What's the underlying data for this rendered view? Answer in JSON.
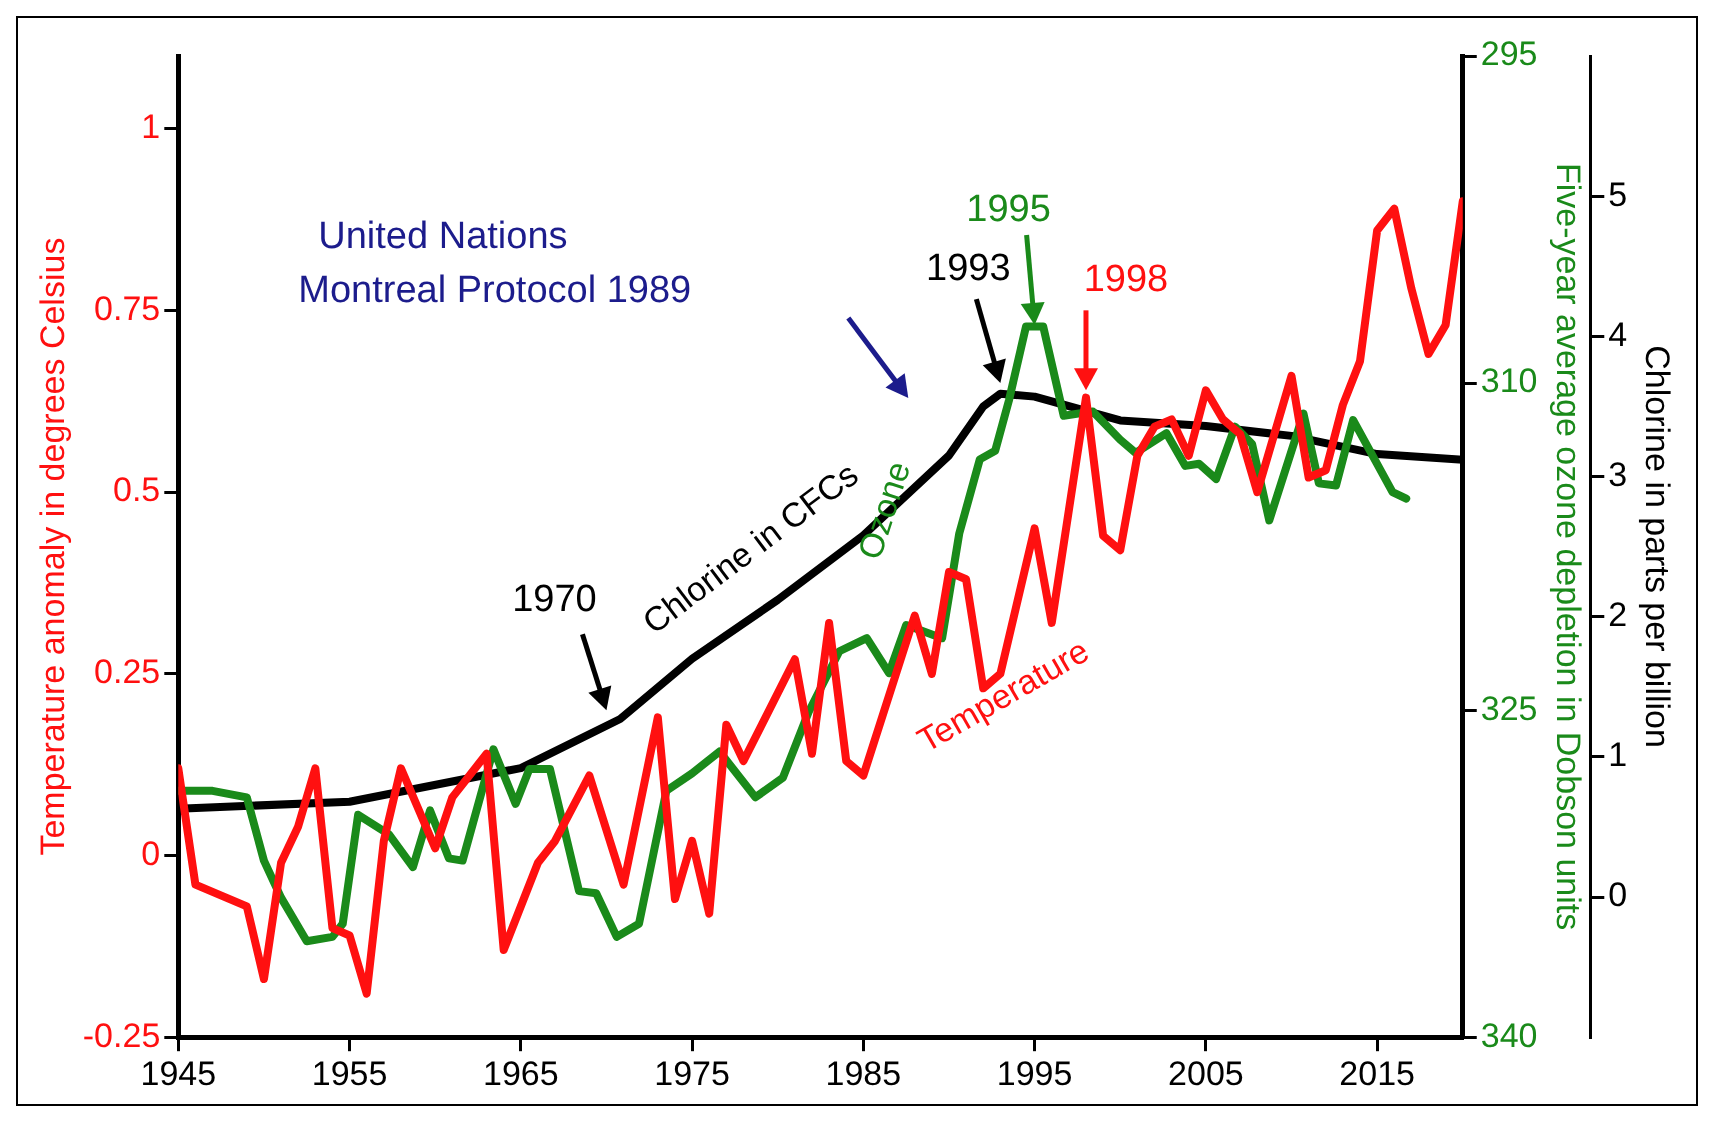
{
  "chart_data": {
    "type": "line",
    "ylabel": "Temperature anomaly in degrees Celsius",
    "y2label": "Five-year average ozone depletion in Dobson units",
    "y3label": "Chlorine in parts per billion",
    "xlim": [
      1945,
      2020
    ],
    "xticks": [
      1945,
      1955,
      1965,
      1975,
      1985,
      1995,
      2005,
      2015
    ],
    "ylim": [
      -0.25,
      1.1
    ],
    "yticks": [
      -0.25,
      0,
      0.25,
      0.5,
      0.75,
      1
    ],
    "y2lim": [
      340,
      295
    ],
    "y2ticks": [
      295,
      310,
      325,
      340
    ],
    "y3lim": [
      -1,
      6
    ],
    "y3ticks": [
      0,
      1,
      2,
      3,
      4,
      5
    ],
    "marker": "none",
    "legend": false,
    "grid": false,
    "series": [
      {
        "name": "Temperature",
        "color": "#ff1010",
        "axis": "y",
        "x": [
          1945,
          1946,
          1949,
          1950,
          1951,
          1952,
          1953,
          1954,
          1955,
          1956,
          1957,
          1958,
          1960,
          1961,
          1963,
          1964,
          1966,
          1967,
          1969,
          1971,
          1973,
          1974,
          1975,
          1976,
          1977,
          1978,
          1981,
          1982,
          1983,
          1984,
          1985,
          1988,
          1989,
          1990,
          1991,
          1992,
          1993,
          1995,
          1996,
          1998,
          1999,
          2000,
          2001,
          2002,
          2003,
          2004,
          2005,
          2006,
          2007,
          2008,
          2010,
          2011,
          2012,
          2013,
          2014,
          2015,
          2016,
          2017,
          2018,
          2019,
          2020
        ],
        "values": [
          0.12,
          -0.04,
          -0.07,
          -0.17,
          -0.01,
          0.04,
          0.12,
          -0.1,
          -0.11,
          -0.19,
          0.02,
          0.12,
          0.01,
          0.08,
          0.14,
          -0.13,
          -0.01,
          0.02,
          0.11,
          -0.04,
          0.19,
          -0.06,
          0.02,
          -0.08,
          0.18,
          0.13,
          0.27,
          0.14,
          0.32,
          0.13,
          0.11,
          0.33,
          0.25,
          0.39,
          0.38,
          0.23,
          0.25,
          0.45,
          0.32,
          0.63,
          0.44,
          0.42,
          0.55,
          0.59,
          0.6,
          0.55,
          0.64,
          0.6,
          0.58,
          0.5,
          0.66,
          0.52,
          0.53,
          0.62,
          0.68,
          0.86,
          0.89,
          0.78,
          0.69,
          0.73,
          0.9
        ]
      },
      {
        "name": "Ozone",
        "color": "#1a8a1a",
        "axis": "y2",
        "x": [
          1945,
          1947,
          1949,
          1950,
          1951,
          1952.5,
          1954,
          1954.6,
          1955.5,
          1957.3,
          1958.7,
          1959.7,
          1960.8,
          1961.6,
          1963.4,
          1964.7,
          1965.5,
          1966.7,
          1968.4,
          1969.4,
          1970.6,
          1971.9,
          1973.5,
          1975,
          1976.6,
          1978.7,
          1980.3,
          1981.8,
          1983.6,
          1985.2,
          1986.5,
          1987.5,
          1989.6,
          1990.6,
          1991.8,
          1992.7,
          1993.5,
          1994.5,
          1995.5,
          1996.7,
          1998.4,
          2000,
          2000.9,
          2002.7,
          2003.8,
          2004.6,
          2005.6,
          2006.7,
          2007.7,
          2008.7,
          2010.7,
          2011.6,
          2012.6,
          2013.6,
          2015.9,
          2016.7
        ],
        "values": [
          328.7,
          328.7,
          329,
          331.9,
          333.6,
          335.6,
          335.4,
          334.8,
          329.8,
          330.7,
          332.2,
          329.6,
          331.8,
          331.9,
          326.8,
          329.3,
          327.7,
          327.7,
          333.3,
          333.4,
          335.4,
          334.8,
          328.7,
          327.9,
          326.9,
          329,
          328.1,
          325.1,
          322.3,
          321.7,
          323.3,
          321.1,
          321.7,
          316.9,
          313.5,
          313.1,
          310.8,
          307.4,
          307.4,
          311.5,
          311.3,
          312.6,
          313.2,
          312.3,
          313.8,
          313.7,
          314.4,
          312,
          312.8,
          316.3,
          311.4,
          314.6,
          314.7,
          311.7,
          315,
          315.3
        ]
      },
      {
        "name": "Chlorine in CFCs",
        "color": "#000000",
        "axis": "y3",
        "x": [
          1945,
          1955,
          1965,
          1970.8,
          1975,
          1980,
          1985,
          1990,
          1992,
          1993,
          1995,
          2000,
          2005,
          2010,
          2015,
          2020
        ],
        "values": [
          0.63,
          0.68,
          0.92,
          1.27,
          1.7,
          2.12,
          2.58,
          3.15,
          3.5,
          3.59,
          3.57,
          3.4,
          3.36,
          3.29,
          3.16,
          3.12
        ]
      }
    ],
    "annotations": [
      "United Nations\nMontreal Protocol 1989",
      {
        "text": "1970",
        "x": 1970,
        "y": 0.2
      },
      {
        "text": "1993",
        "x": 1993,
        "y": 0.65
      },
      {
        "text": "1995",
        "x": 1995,
        "y": 0.73
      },
      {
        "text": "1998",
        "x": 1998,
        "y": 0.64
      }
    ]
  }
}
